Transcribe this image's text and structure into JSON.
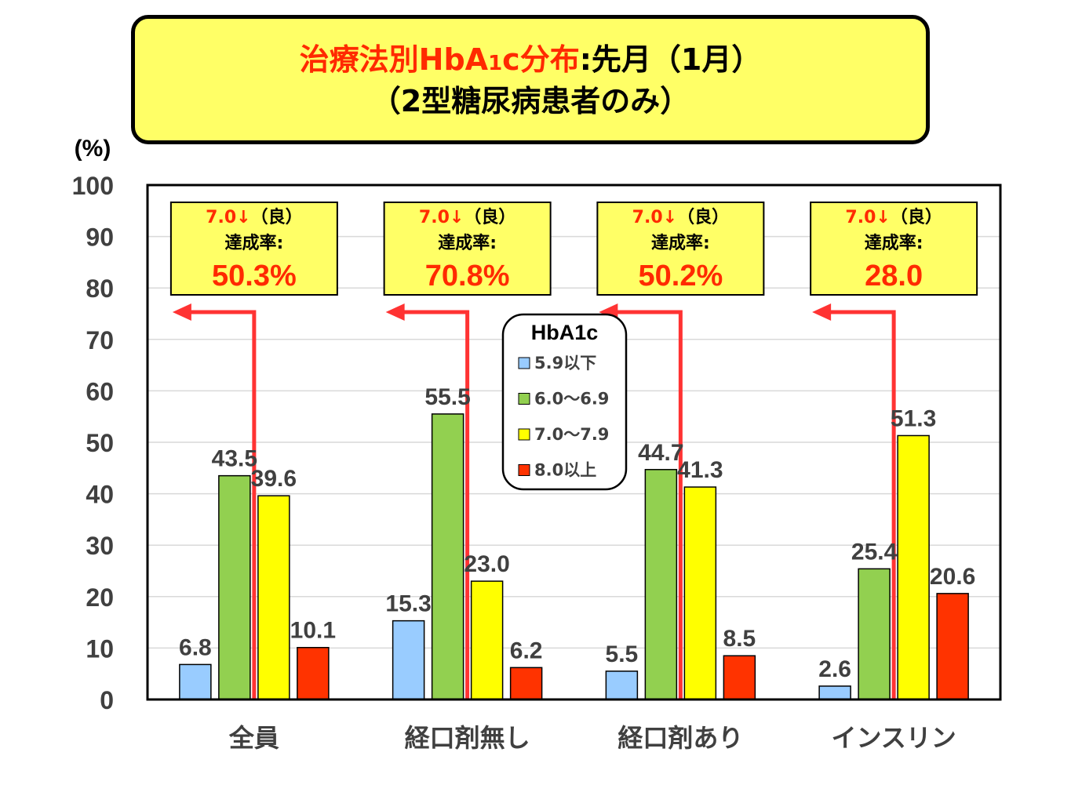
{
  "title": {
    "red_part": "治療法別HbA",
    "red_sub": "1",
    "red_tail": "c分布",
    "black_part": ":先月（1月）",
    "line2": "（2型糖尿病患者のみ）"
  },
  "chart_data": {
    "type": "bar",
    "yunit": "(%)",
    "ylim": [
      0,
      100
    ],
    "yticks": [
      0,
      10,
      20,
      30,
      40,
      50,
      60,
      70,
      80,
      90,
      100
    ],
    "categories": [
      "全員",
      "経口剤無し",
      "経口剤あり",
      "インスリン"
    ],
    "legend_title": "HbA1c",
    "legend_placement": "top-center",
    "series": [
      {
        "name": "5.9以下",
        "color": "#99ccff",
        "values": [
          6.8,
          15.3,
          5.5,
          2.6
        ],
        "labels": [
          "6.8",
          "15.3",
          "5.5",
          "2.6"
        ]
      },
      {
        "name": "6.0～6.9",
        "color": "#92d050",
        "values": [
          43.5,
          55.5,
          44.7,
          25.4
        ],
        "labels": [
          "43.5",
          "55.5",
          "44.7",
          "25.4"
        ]
      },
      {
        "name": "7.0～7.9",
        "color": "#ffff00",
        "values": [
          39.6,
          23.0,
          41.3,
          51.3
        ],
        "labels": [
          "39.6",
          "23.0",
          "41.3",
          "51.3"
        ]
      },
      {
        "name": "8.0以上",
        "color": "#ff3300",
        "values": [
          10.1,
          6.2,
          8.5,
          20.6
        ],
        "labels": [
          "10.1",
          "6.2",
          "8.5",
          "20.6"
        ]
      }
    ],
    "annotations": [
      {
        "line1_red": "7.0↓",
        "line1_black": "（良）",
        "line2": "達成率:",
        "value": "50.3%"
      },
      {
        "line1_red": "7.0↓",
        "line1_black": "（良）",
        "line2": "達成率:",
        "value": "70.8%"
      },
      {
        "line1_red": "7.0↓",
        "line1_black": "（良）",
        "line2": "達成率:",
        "value": "50.2%"
      },
      {
        "line1_red": "7.0↓",
        "line1_black": "（良）",
        "line2": "達成率:",
        "value": "28.0"
      }
    ],
    "grid": true
  }
}
